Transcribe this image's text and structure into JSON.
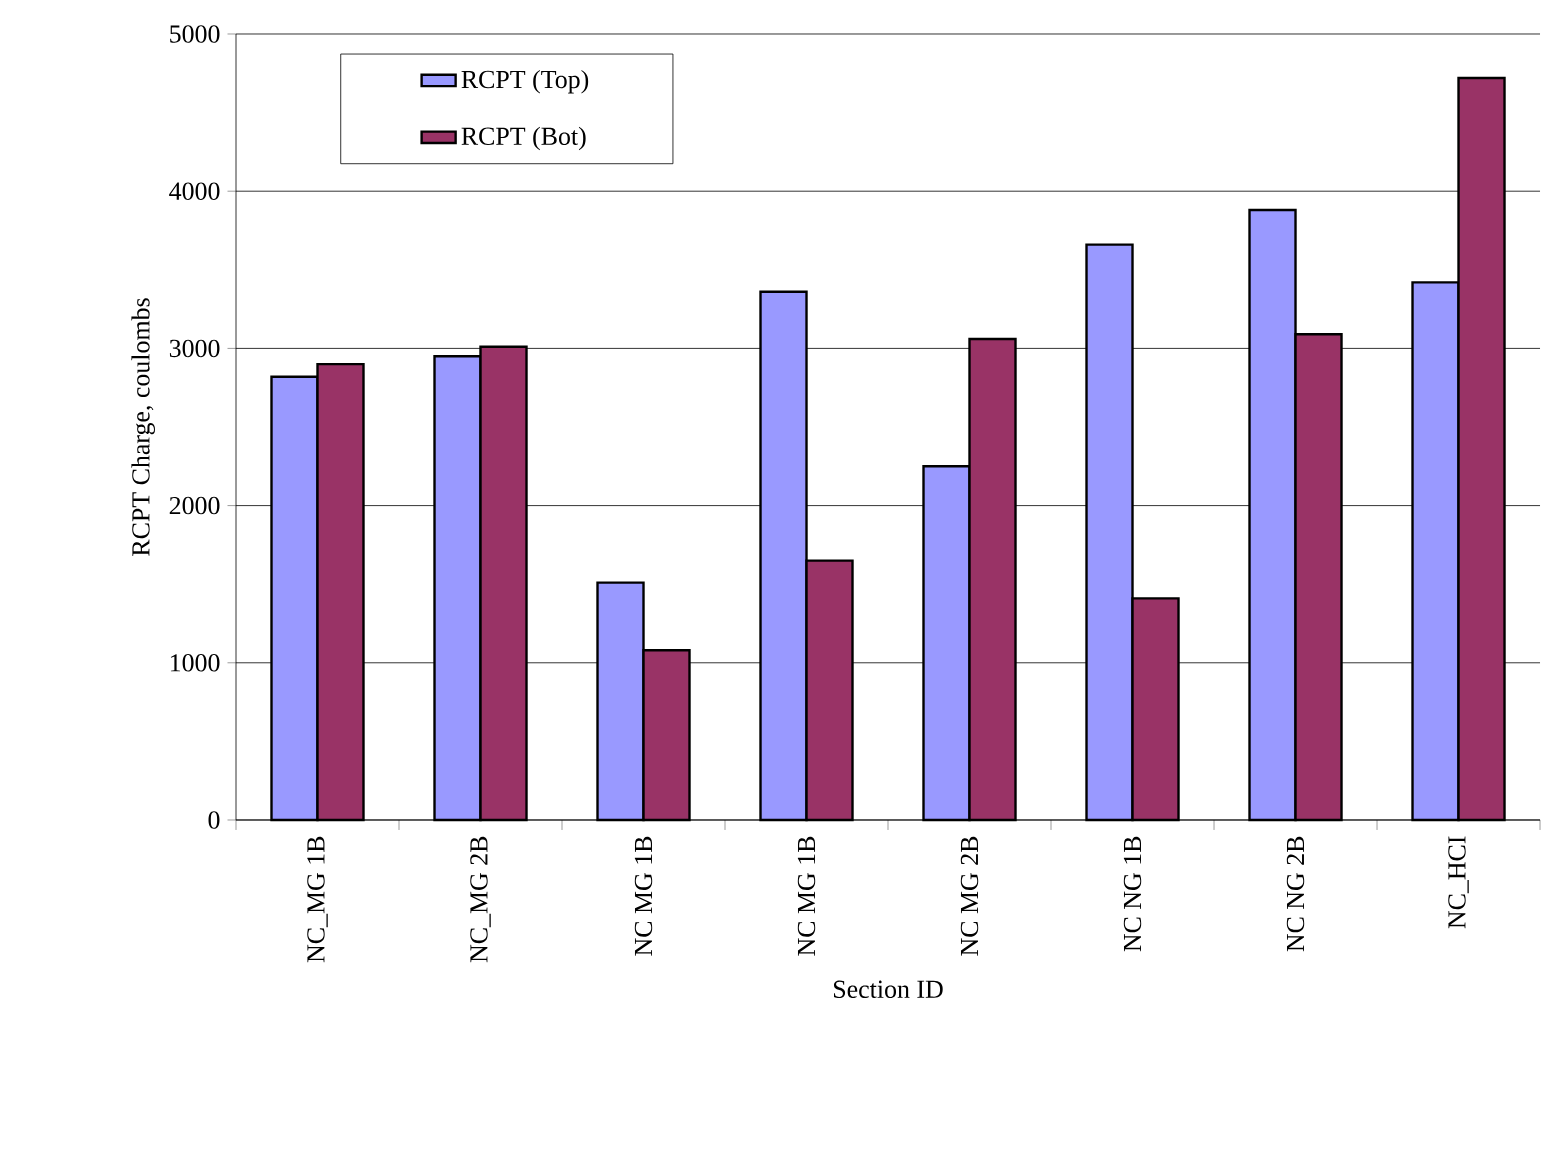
{
  "chart_data": {
    "type": "bar",
    "xlabel": "Section ID",
    "ylabel": "RCPT Charge, coulombs",
    "categories": [
      "NC_MG 1B",
      "NC_MG 2B",
      "NC MG 1B",
      "NC MG 1B",
      "NC MG 2B",
      "NC NG 1B",
      "NC NG 2B",
      "NC_HCI"
    ],
    "series": [
      {
        "name": "RCPT (Top)",
        "color": "#9999ff",
        "values": [
          2820,
          2950,
          1510,
          3360,
          2250,
          3660,
          3880,
          3420
        ]
      },
      {
        "name": "RCPT (Bot)",
        "color": "#993366",
        "values": [
          2900,
          3010,
          1080,
          1650,
          3060,
          1410,
          3090,
          4720
        ]
      }
    ],
    "ylim": [
      0,
      5000
    ],
    "yticks": [
      0,
      1000,
      2000,
      3000,
      4000,
      5000
    ],
    "grid": "y",
    "legend": "top"
  }
}
